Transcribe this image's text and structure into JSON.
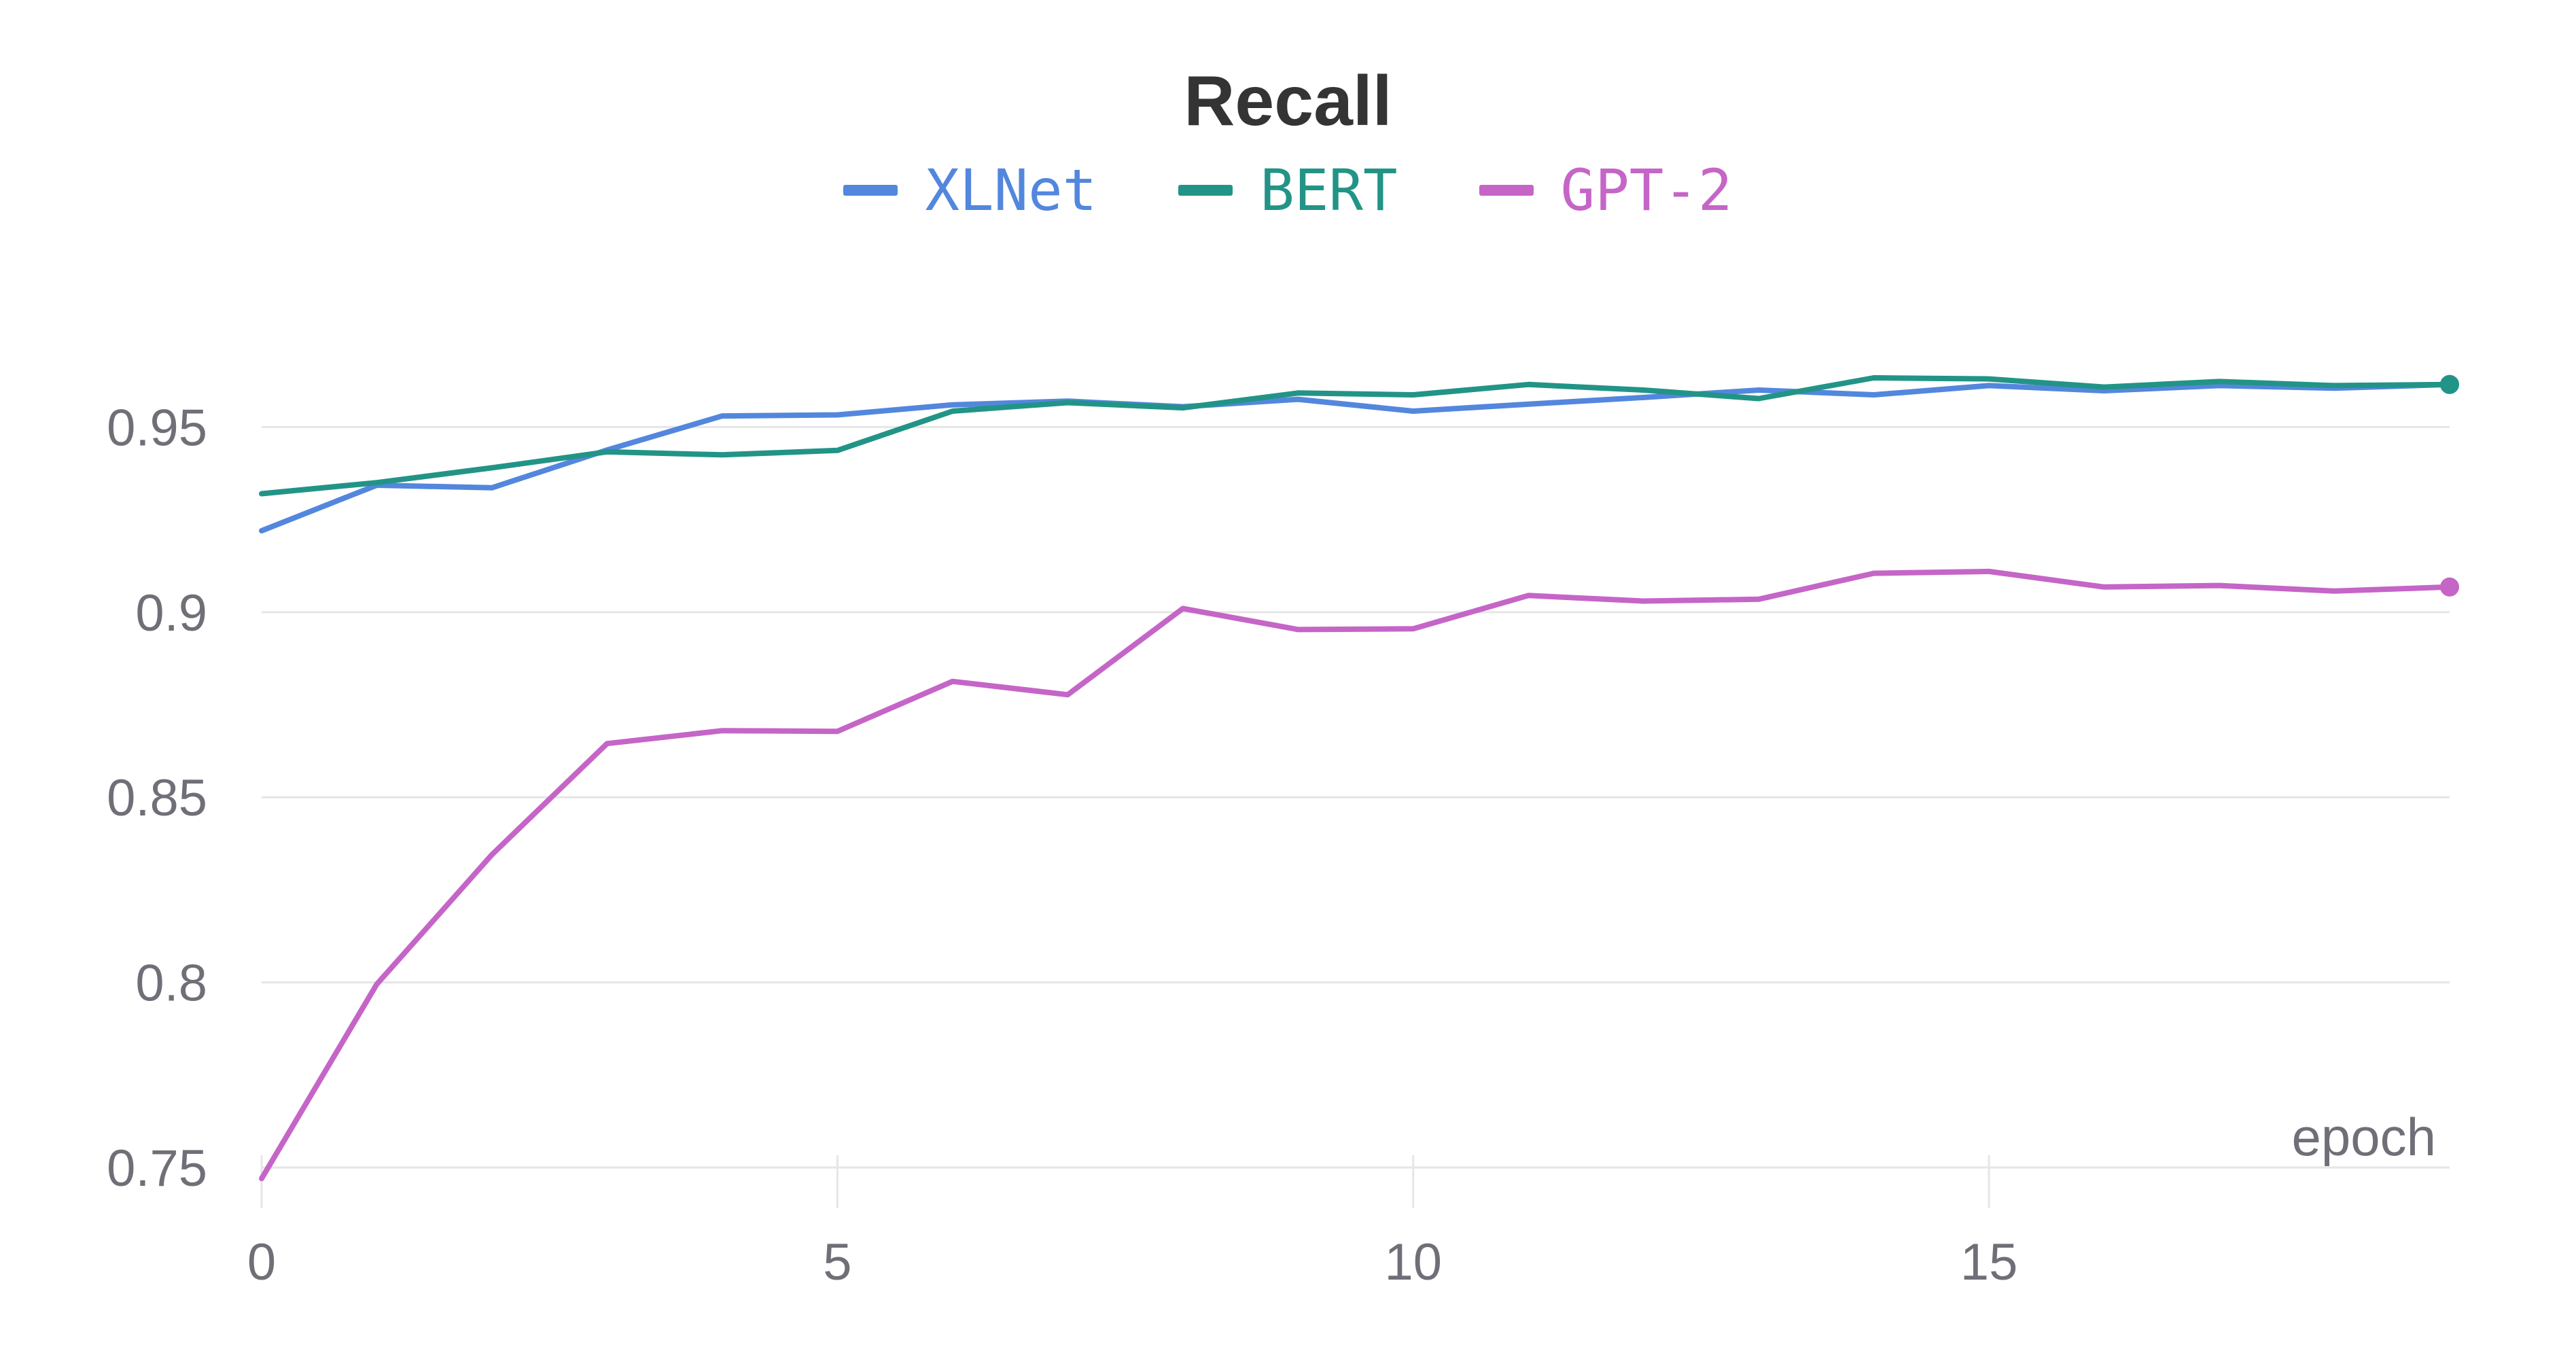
{
  "chart_data": {
    "type": "line",
    "title": "Recall",
    "xlabel": "epoch",
    "ylabel": "",
    "xlim": [
      0,
      19
    ],
    "ylim": [
      0.75,
      0.98
    ],
    "x_ticks": [
      0,
      5,
      10,
      15
    ],
    "x_tick_labels": [
      "0",
      "5",
      "10",
      "15"
    ],
    "y_ticks": [
      0.75,
      0.8,
      0.85,
      0.9,
      0.95
    ],
    "y_tick_labels": [
      "0.75",
      "0.8",
      "0.85",
      "0.9",
      "0.95"
    ],
    "grid": true,
    "legend_position": "top-center",
    "x": [
      0,
      1,
      2,
      3,
      4,
      5,
      6,
      7,
      8,
      9,
      10,
      11,
      12,
      13,
      14,
      15,
      16,
      17,
      18,
      19
    ],
    "series": [
      {
        "name": "XLNet",
        "color": "#5387dd",
        "values": [
          0.922,
          0.9343,
          0.9336,
          0.9438,
          0.953,
          0.9533,
          0.956,
          0.957,
          0.9555,
          0.9575,
          0.9543,
          0.9562,
          0.958,
          0.96,
          0.9587,
          0.9612,
          0.9598,
          0.9612,
          0.9605,
          0.9615
        ]
      },
      {
        "name": "BERT",
        "color": "#229487",
        "values": [
          0.932,
          0.935,
          0.939,
          0.9433,
          0.9425,
          0.9437,
          0.9543,
          0.9566,
          0.9552,
          0.9592,
          0.9587,
          0.9615,
          0.96,
          0.9577,
          0.9633,
          0.963,
          0.9608,
          0.9623,
          0.9612,
          0.9615
        ]
      },
      {
        "name": "GPT-2",
        "color": "#c565c7",
        "values": [
          0.747,
          0.7995,
          0.8345,
          0.8645,
          0.868,
          0.8678,
          0.8813,
          0.8777,
          0.901,
          0.8953,
          0.8955,
          0.9045,
          0.903,
          0.9035,
          0.9105,
          0.911,
          0.9068,
          0.9072,
          0.9057,
          0.9068
        ]
      }
    ],
    "colors": {
      "grid": "#e6e6e6",
      "tick_label": "#6f6f78",
      "title": "#343434"
    }
  }
}
